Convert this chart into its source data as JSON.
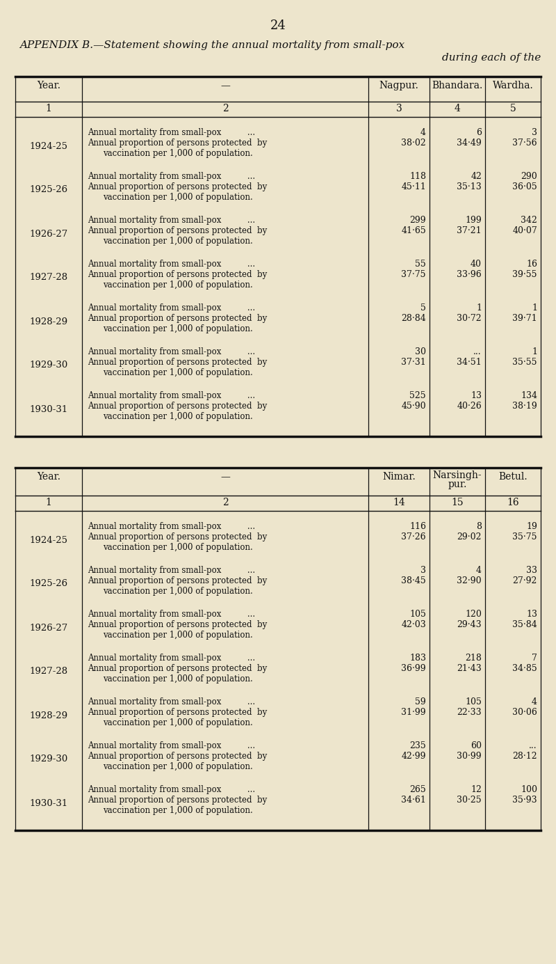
{
  "page_number": "24",
  "title_line1": "APPENDIX B.—Statement showing the annual mortality from small-pox",
  "title_line2": "during each of the",
  "bg_color": "#ede5cc",
  "table1": {
    "col_headers": [
      "Year.",
      "—",
      "Nagpur.",
      "Bhandara.",
      "Wardha."
    ],
    "col_numbers": [
      "1",
      "2",
      "3",
      "4",
      "5"
    ],
    "rows": [
      {
        "year": "1924-25",
        "mort_nagpur": "4",
        "mort_bhandara": "6",
        "mort_wardha": "3",
        "prop_nagpur": "38·02",
        "prop_bhandara": "34·49",
        "prop_wardha": "37·56"
      },
      {
        "year": "1925-26",
        "mort_nagpur": "118",
        "mort_bhandara": "42",
        "mort_wardha": "290",
        "prop_nagpur": "45·11",
        "prop_bhandara": "35·13",
        "prop_wardha": "36·05"
      },
      {
        "year": "1926-27",
        "mort_nagpur": "299",
        "mort_bhandara": "199",
        "mort_wardha": "342",
        "prop_nagpur": "41·65",
        "prop_bhandara": "37·21",
        "prop_wardha": "40·07"
      },
      {
        "year": "1927-28",
        "mort_nagpur": "55",
        "mort_bhandara": "40",
        "mort_wardha": "16",
        "prop_nagpur": "37·75",
        "prop_bhandara": "33·96",
        "prop_wardha": "39·55"
      },
      {
        "year": "1928-29",
        "mort_nagpur": "5",
        "mort_bhandara": "1",
        "mort_wardha": "1",
        "prop_nagpur": "28·84",
        "prop_bhandara": "30·72",
        "prop_wardha": "39·71"
      },
      {
        "year": "1929-30",
        "mort_nagpur": "30",
        "mort_bhandara": "...",
        "mort_wardha": "1",
        "prop_nagpur": "37·31",
        "prop_bhandara": "34·51",
        "prop_wardha": "35·55"
      },
      {
        "year": "1930-31",
        "mort_nagpur": "525",
        "mort_bhandara": "13",
        "mort_wardha": "134",
        "prop_nagpur": "45·90",
        "prop_bhandara": "40·26",
        "prop_wardha": "38·19"
      }
    ]
  },
  "table2": {
    "col_headers": [
      "Year.",
      "—",
      "Nimar.",
      "Narsingh-\npur.",
      "Betul."
    ],
    "col_numbers": [
      "1",
      "2",
      "14",
      "15",
      "16"
    ],
    "rows": [
      {
        "year": "1924-25",
        "mort_c3": "116",
        "mort_c4": "8",
        "mort_c5": "19",
        "prop_c3": "37·26",
        "prop_c4": "29·02",
        "prop_c5": "35·75"
      },
      {
        "year": "1925-26",
        "mort_c3": "3",
        "mort_c4": "4",
        "mort_c5": "33",
        "prop_c3": "38·45",
        "prop_c4": "32·90",
        "prop_c5": "27·92"
      },
      {
        "year": "1926-27",
        "mort_c3": "105",
        "mort_c4": "120",
        "mort_c5": "13",
        "prop_c3": "42·03",
        "prop_c4": "29·43",
        "prop_c5": "35·84"
      },
      {
        "year": "1927-28",
        "mort_c3": "183",
        "mort_c4": "218",
        "mort_c5": "7",
        "prop_c3": "36·99",
        "prop_c4": "21·43",
        "prop_c5": "34·85"
      },
      {
        "year": "1928-29",
        "mort_c3": "59",
        "mort_c4": "105",
        "mort_c5": "4",
        "prop_c3": "31·99",
        "prop_c4": "22·33",
        "prop_c5": "30·06"
      },
      {
        "year": "1929-30",
        "mort_c3": "235",
        "mort_c4": "60",
        "mort_c5": "...",
        "prop_c3": "42·99",
        "prop_c4": "30·99",
        "prop_c5": "28·12"
      },
      {
        "year": "1930-31",
        "mort_c3": "265",
        "mort_c4": "12",
        "mort_c5": "100",
        "prop_c3": "34·61",
        "prop_c4": "30·25",
        "prop_c5": "35·93"
      }
    ]
  },
  "desc_line1": "Annual mortality from small-pox",
  "desc_line2a": "Annual proportion of persons protected  by",
  "desc_line2b": "vaccination per 1,000 of population."
}
